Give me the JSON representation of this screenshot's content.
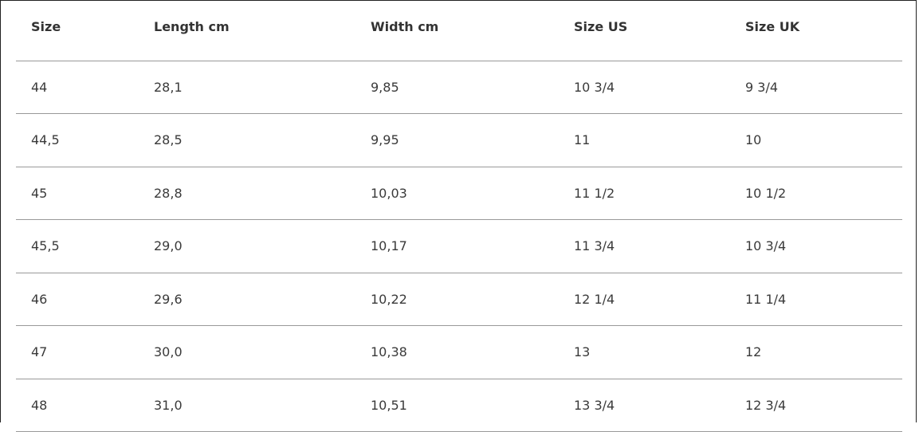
{
  "table": {
    "headers": [
      "Size",
      "Length cm",
      "Width cm",
      "Size US",
      "Size UK"
    ],
    "rows": [
      [
        "44",
        "28,1",
        "9,85",
        "10 3/4",
        "9 3/4"
      ],
      [
        "44,5",
        "28,5",
        "9,95",
        "11",
        "10"
      ],
      [
        "45",
        "28,8",
        "10,03",
        "11 1/2",
        "10 1/2"
      ],
      [
        "45,5",
        "29,0",
        "10,17",
        "11 3/4",
        "10 3/4"
      ],
      [
        "46",
        "29,6",
        "10,22",
        "12 1/4",
        "11 1/4"
      ],
      [
        "47",
        "30,0",
        "10,38",
        "13",
        "12"
      ],
      [
        "48",
        "31,0",
        "10,51",
        "13 3/4",
        "12 3/4"
      ]
    ]
  }
}
